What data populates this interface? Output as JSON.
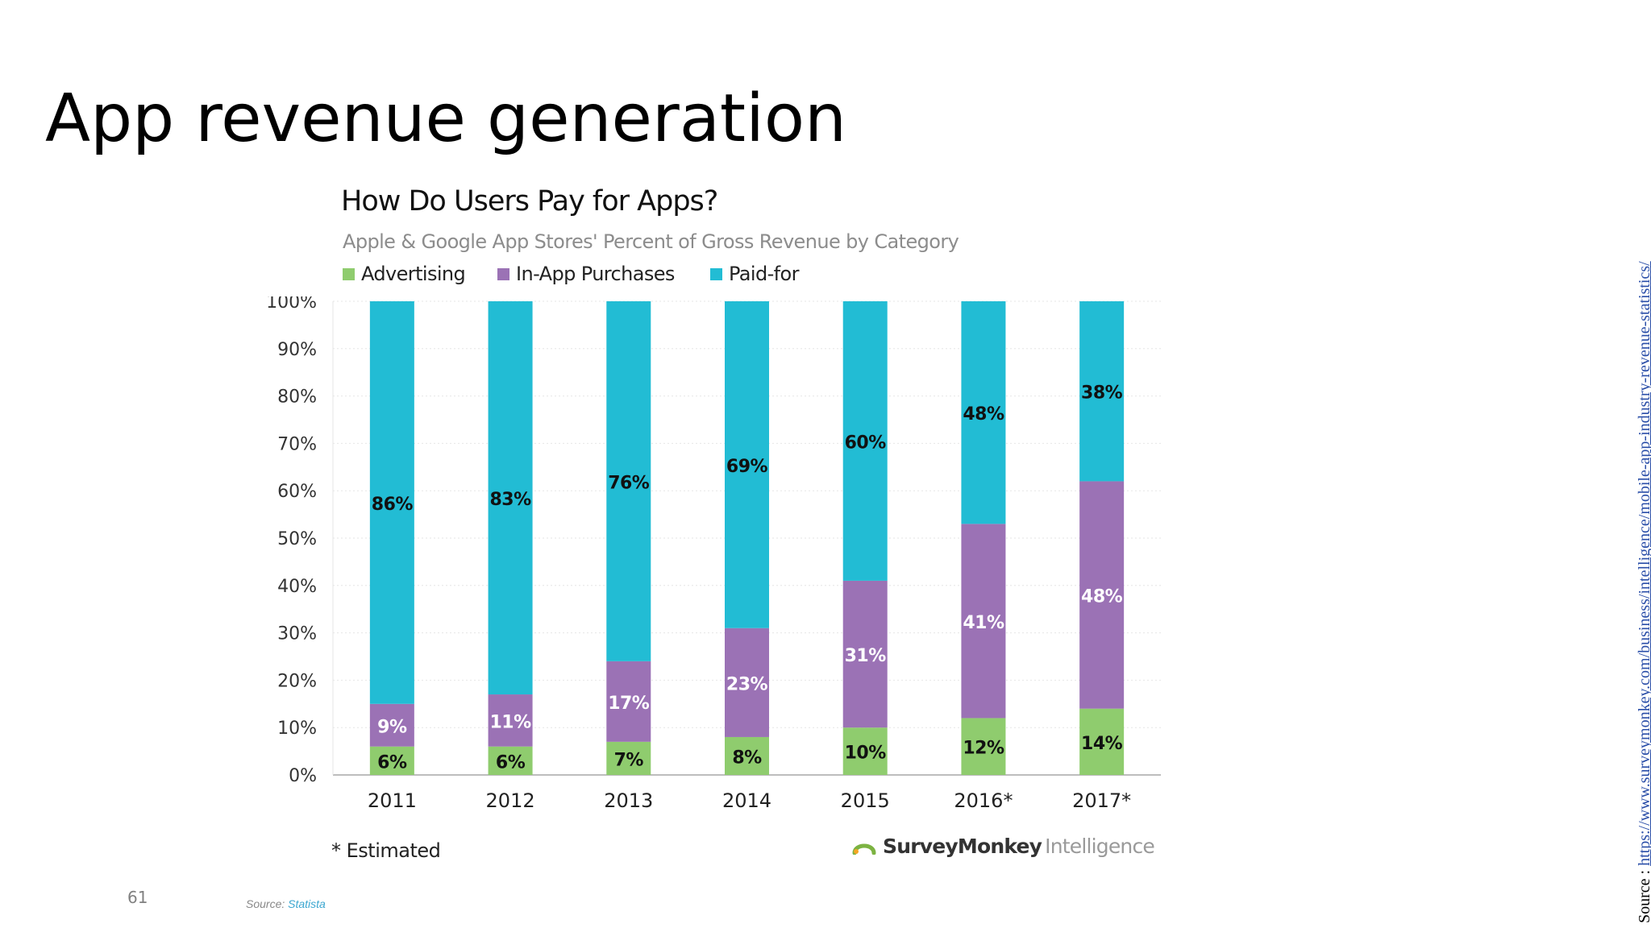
{
  "slide": {
    "title": "App revenue generation",
    "page_number": "61",
    "source_label": "Source : ",
    "source_url": "https://www.surveymonkey.com/business/intelligence/mobile-app-industry-revenue-statistics/"
  },
  "chart_footer": {
    "footnote": "* Estimated",
    "brand_strong": "SurveyMonkey",
    "brand_light": "Intelligence",
    "source_prefix": "Source: ",
    "source_name": "Statista"
  },
  "colors": {
    "Advertising": "#8fcc6e",
    "In-App Purchases": "#9b72b5",
    "Paid-for": "#22bcd4",
    "brand_logo": "#7cb342"
  },
  "chart_data": {
    "type": "bar",
    "stacked": true,
    "title": "How Do Users Pay for Apps?",
    "subtitle": "Apple & Google App Stores' Percent of Gross Revenue by Category",
    "categories": [
      "2011",
      "2012",
      "2013",
      "2014",
      "2015",
      "2016*",
      "2017*"
    ],
    "series": [
      {
        "name": "Advertising",
        "values": [
          6,
          6,
          7,
          8,
          10,
          12,
          14
        ]
      },
      {
        "name": "In-App Purchases",
        "values": [
          9,
          11,
          17,
          23,
          31,
          41,
          48
        ]
      },
      {
        "name": "Paid-for",
        "values": [
          86,
          83,
          76,
          69,
          60,
          48,
          38
        ]
      }
    ],
    "ylim": [
      0,
      100
    ],
    "yticks": [
      0,
      10,
      20,
      30,
      40,
      50,
      60,
      70,
      80,
      90,
      100
    ],
    "ytick_labels": [
      "0%",
      "10%",
      "20%",
      "30%",
      "40%",
      "50%",
      "60%",
      "70%",
      "80%",
      "90%",
      "100%"
    ],
    "xlabel": "",
    "ylabel": "",
    "grid": true,
    "legend": "top-left",
    "data_label_suffix": "%"
  }
}
